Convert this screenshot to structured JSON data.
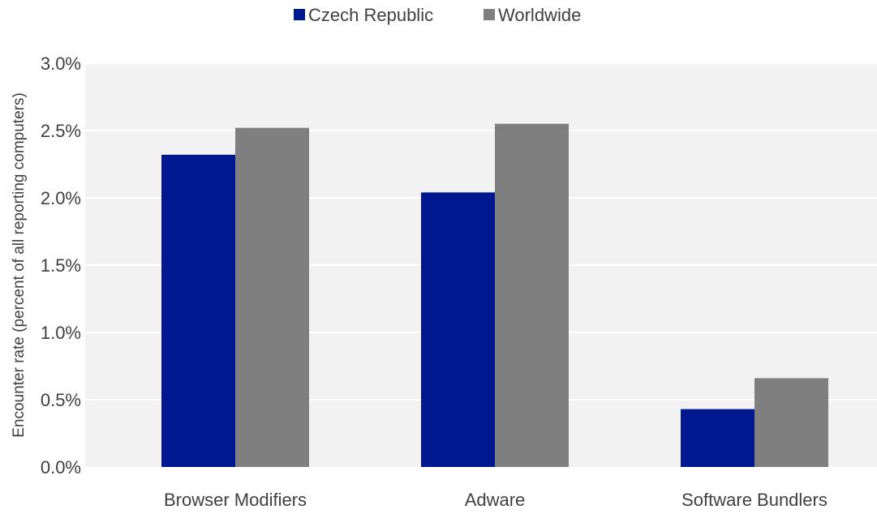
{
  "chart_data": {
    "type": "bar",
    "title": "",
    "xlabel": "",
    "ylabel": "Encounter rate (percent of all reporting computers)",
    "categories": [
      "Browser Modifiers",
      "Adware",
      "Software Bundlers"
    ],
    "series": [
      {
        "name": "Czech Republic",
        "color": "#00188f",
        "values": [
          2.32,
          2.04,
          0.43
        ]
      },
      {
        "name": "Worldwide",
        "color": "#7f7f7f",
        "values": [
          2.52,
          2.55,
          0.66
        ]
      }
    ],
    "ylim": [
      0,
      3.0
    ],
    "yticks": [
      0.0,
      0.5,
      1.0,
      1.5,
      2.0,
      2.5,
      3.0
    ],
    "ytick_labels": [
      "0.0%",
      "0.5%",
      "1.0%",
      "1.5%",
      "2.0%",
      "2.5%",
      "3.0%"
    ],
    "grid": true,
    "legend_position": "top-center",
    "plot_background": "#f2f2f2",
    "gridline_color": "#ffffff"
  }
}
